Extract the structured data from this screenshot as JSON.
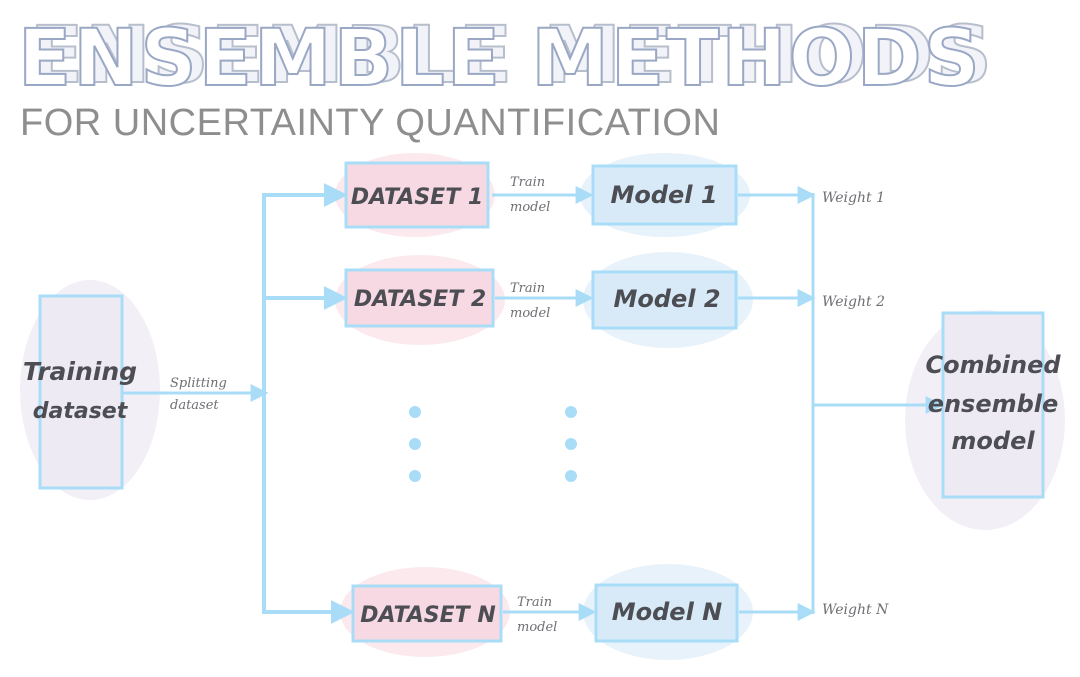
{
  "title": "ENSEMBLE METHODS",
  "subtitle": "FOR UNCERTAINTY QUANTIFICATION",
  "training": {
    "line1": "Training",
    "line2": "dataset"
  },
  "splitting": {
    "line1": "Splitting",
    "line2": "dataset"
  },
  "rows": [
    {
      "dataset": "DATASET 1",
      "train1": "Train",
      "train2": "model",
      "model": "Model 1",
      "weight": "Weight 1"
    },
    {
      "dataset": "DATASET 2",
      "train1": "Train",
      "train2": "model",
      "model": "Model 2",
      "weight": "Weight 2"
    },
    {
      "dataset": "DATASET N",
      "train1": "Train",
      "train2": "model",
      "model": "Model N",
      "weight": "Weight N"
    }
  ],
  "combined": {
    "line1": "Combined",
    "line2": "ensemble",
    "line3": "model"
  },
  "colors": {
    "arrow": "#a9ddf7",
    "dataset_fill": "#f6d9e2",
    "model_fill": "#d8eaf8",
    "box_fill": "#eeeaf4",
    "text": "#4d4d54"
  }
}
